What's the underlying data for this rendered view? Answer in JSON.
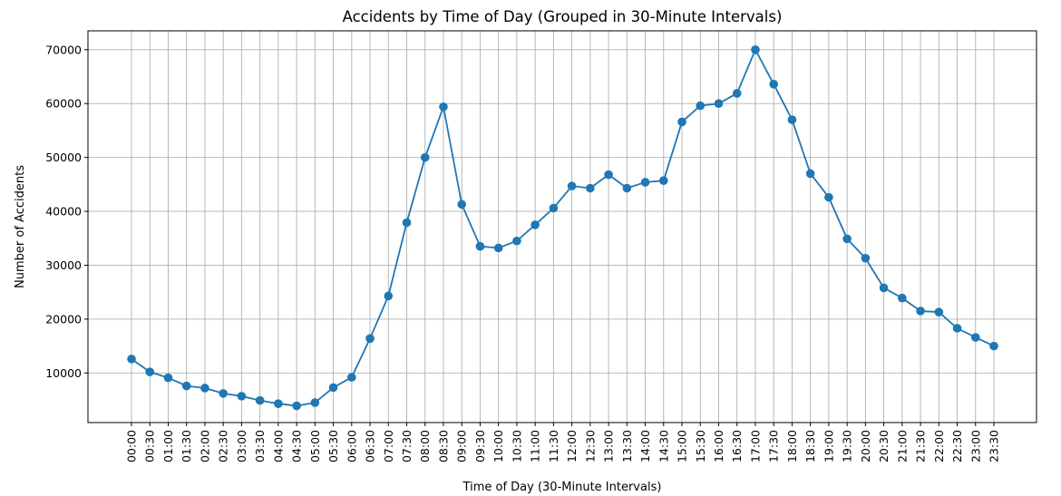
{
  "chart_data": {
    "type": "line",
    "title": "Accidents by Time of Day (Grouped in 30-Minute Intervals)",
    "xlabel": "Time of Day (30-Minute Intervals)",
    "ylabel": "Number of Accidents",
    "grid": true,
    "ylim": [
      800,
      73500
    ],
    "yticks": [
      10000,
      20000,
      30000,
      40000,
      50000,
      60000,
      70000
    ],
    "series_color": "#1f77b4",
    "x": [
      "00:00",
      "00:30",
      "01:00",
      "01:30",
      "02:00",
      "02:30",
      "03:00",
      "03:30",
      "04:00",
      "04:30",
      "05:00",
      "05:30",
      "06:00",
      "06:30",
      "07:00",
      "07:30",
      "08:00",
      "08:30",
      "09:00",
      "09:30",
      "10:00",
      "10:30",
      "11:00",
      "11:30",
      "12:00",
      "12:30",
      "13:00",
      "13:30",
      "14:00",
      "14:30",
      "15:00",
      "15:30",
      "16:00",
      "16:30",
      "17:00",
      "17:30",
      "18:00",
      "18:30",
      "19:00",
      "19:30",
      "20:00",
      "20:30",
      "21:00",
      "21:30",
      "22:00",
      "22:30",
      "23:00",
      "23:30"
    ],
    "values": [
      12600,
      10200,
      9100,
      7600,
      7200,
      6200,
      5700,
      4900,
      4300,
      3900,
      4500,
      7300,
      9200,
      16400,
      24300,
      37900,
      50000,
      59400,
      41300,
      33500,
      33200,
      34500,
      37500,
      40600,
      44700,
      44300,
      46800,
      44300,
      45400,
      45700,
      56600,
      59600,
      60000,
      61900,
      70000,
      63600,
      57000,
      47000,
      42600,
      34900,
      31300,
      25800,
      23900,
      21500,
      21300,
      18300,
      16600,
      15000
    ]
  }
}
